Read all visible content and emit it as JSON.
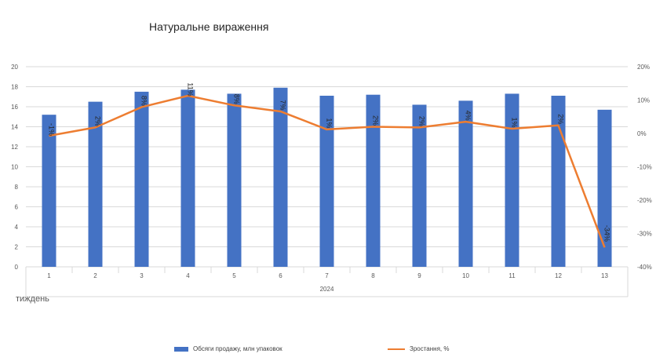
{
  "chart_data": {
    "type": "bar",
    "title": "Натуральне вираження",
    "x_group_label": "2024",
    "x_unit_label": "тиждень",
    "categories": [
      "1",
      "2",
      "3",
      "4",
      "5",
      "6",
      "7",
      "8",
      "9",
      "10",
      "11",
      "12",
      "13"
    ],
    "series": [
      {
        "name": "Обсяги продажу, млн упаковок",
        "type": "bar",
        "axis": "left",
        "color": "#4472C4",
        "values": [
          15.2,
          16.5,
          17.5,
          17.7,
          17.3,
          17.9,
          17.1,
          17.2,
          16.2,
          16.6,
          17.3,
          17.1,
          15.7
        ]
      },
      {
        "name": "Зростання, %",
        "type": "line",
        "axis": "right",
        "color": "#ED7D31",
        "values": [
          -0.7,
          1.8,
          7.9,
          11.3,
          8.4,
          6.6,
          1.2,
          2.0,
          1.8,
          3.5,
          1.4,
          2.4,
          -34.2
        ],
        "labels": [
          "-1%",
          "2%",
          "8%",
          "11%",
          "8%",
          "7%",
          "1%",
          "2%",
          "2%",
          "4%",
          "1%",
          "2%",
          "-34%"
        ]
      }
    ],
    "y_left": {
      "min": 0,
      "max": 20,
      "step": 2,
      "ticks": [
        "0",
        "2",
        "4",
        "6",
        "8",
        "10",
        "12",
        "14",
        "16",
        "18",
        "20"
      ]
    },
    "y_right": {
      "min": -40,
      "max": 20,
      "step": 10,
      "ticks": [
        "-40%",
        "-30%",
        "-20%",
        "-10%",
        "0%",
        "10%",
        "20%"
      ]
    },
    "grid": true,
    "legend_position": "bottom"
  }
}
